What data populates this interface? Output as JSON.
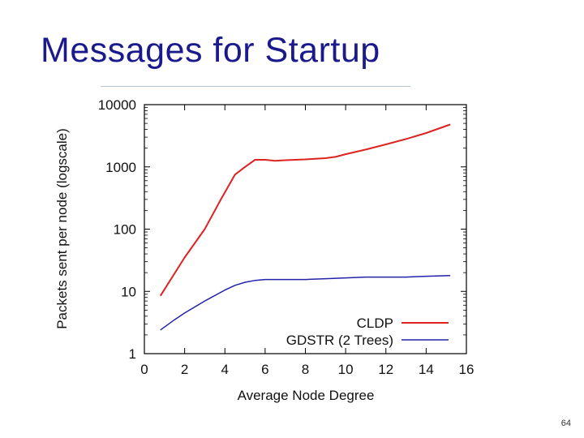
{
  "slide": {
    "title": "Messages for Startup",
    "page_number": "64"
  },
  "chart_data": {
    "type": "line",
    "title": "",
    "xlabel": "Average Node Degree",
    "ylabel": "Packets sent per node (logscale)",
    "x_scale": "linear",
    "y_scale": "log",
    "xlim": [
      0,
      16
    ],
    "ylim": [
      1,
      10000
    ],
    "x_ticks": [
      0,
      2,
      4,
      6,
      8,
      10,
      12,
      14,
      16
    ],
    "y_ticks": [
      1,
      10,
      100,
      1000,
      10000
    ],
    "x_tick_labels": [
      "0",
      "2",
      "4",
      "6",
      "8",
      "10",
      "12",
      "14",
      "16"
    ],
    "y_tick_labels": [
      "1",
      "10",
      "100",
      "1000",
      "10000"
    ],
    "legend_position": "bottom-right",
    "grid": false,
    "series": [
      {
        "name": "CLDP",
        "color": "#dd2222",
        "x": [
          0.8,
          2.0,
          3.0,
          3.8,
          4.5,
          5.0,
          5.5,
          6.0,
          6.5,
          7.0,
          7.5,
          8.0,
          8.5,
          9.0,
          9.5,
          10.0,
          11.0,
          12.0,
          13.0,
          14.0,
          15.2
        ],
        "y": [
          8.5,
          35,
          100,
          300,
          750,
          1000,
          1300,
          1300,
          1250,
          1280,
          1300,
          1320,
          1350,
          1380,
          1450,
          1600,
          1900,
          2300,
          2800,
          3500,
          4800
        ]
      },
      {
        "name": "GDSTR (2 Trees)",
        "color": "#2222aa",
        "x": [
          0.8,
          1.5,
          2.0,
          3.0,
          4.0,
          4.5,
          5.0,
          5.5,
          6.0,
          7.0,
          8.0,
          9.0,
          10.0,
          11.0,
          12.0,
          13.0,
          14.0,
          15.2
        ],
        "y": [
          2.4,
          3.5,
          4.5,
          7,
          10.5,
          12.5,
          14,
          15,
          15.5,
          15.5,
          15.5,
          16,
          16.5,
          17,
          17,
          17,
          17.5,
          18
        ]
      }
    ]
  }
}
